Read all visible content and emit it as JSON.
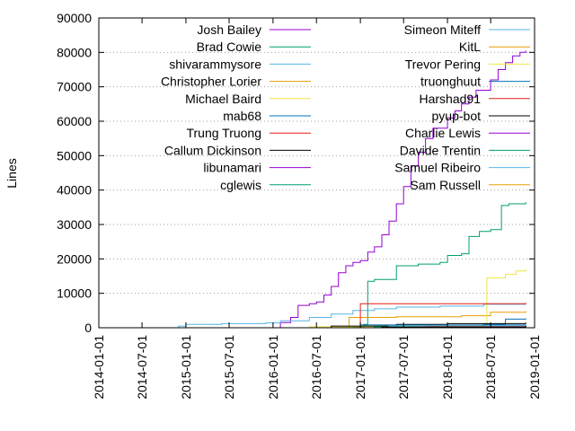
{
  "chart_data": {
    "type": "line",
    "title": "",
    "xlabel": "",
    "ylabel": "Lines",
    "xlim": [
      "2014-01-01",
      "2019-01-01"
    ],
    "ylim": [
      0,
      90000
    ],
    "x_ticks": [
      "2014-01-01",
      "2014-07-01",
      "2015-01-01",
      "2015-07-01",
      "2016-01-01",
      "2016-07-01",
      "2017-01-01",
      "2017-07-01",
      "2018-01-01",
      "2018-07-01",
      "2019-01-01"
    ],
    "y_ticks": [
      0,
      10000,
      20000,
      30000,
      40000,
      50000,
      60000,
      70000,
      80000,
      90000
    ],
    "grid": "horizontal dotted",
    "legend_position": "top",
    "series": [
      {
        "name": "Josh Bailey",
        "color": "#9400d3",
        "points": [
          [
            "2014-01-01",
            0
          ],
          [
            "2016-01-15",
            0
          ],
          [
            "2016-02-01",
            1500
          ],
          [
            "2016-03-15",
            3000
          ],
          [
            "2016-04-15",
            6500
          ],
          [
            "2016-06-01",
            7000
          ],
          [
            "2016-07-01",
            7500
          ],
          [
            "2016-08-01",
            9500
          ],
          [
            "2016-09-01",
            12000
          ],
          [
            "2016-10-01",
            16000
          ],
          [
            "2016-11-01",
            18000
          ],
          [
            "2016-12-01",
            19000
          ],
          [
            "2017-01-01",
            19500
          ],
          [
            "2017-02-01",
            22000
          ],
          [
            "2017-03-01",
            23500
          ],
          [
            "2017-04-01",
            27000
          ],
          [
            "2017-05-01",
            31000
          ],
          [
            "2017-06-01",
            36000
          ],
          [
            "2017-07-01",
            41000
          ],
          [
            "2017-08-01",
            47000
          ],
          [
            "2017-09-01",
            51000
          ],
          [
            "2017-10-01",
            55000
          ],
          [
            "2017-11-01",
            58000
          ],
          [
            "2018-01-01",
            61000
          ],
          [
            "2018-02-01",
            63000
          ],
          [
            "2018-03-01",
            65000
          ],
          [
            "2018-04-01",
            67000
          ],
          [
            "2018-05-01",
            69000
          ],
          [
            "2018-07-01",
            72000
          ],
          [
            "2018-08-01",
            75000
          ],
          [
            "2018-09-01",
            77000
          ],
          [
            "2018-10-01",
            79000
          ],
          [
            "2018-11-01",
            80000
          ],
          [
            "2018-11-25",
            80500
          ]
        ]
      },
      {
        "name": "Brad Cowie",
        "color": "#009e73",
        "points": [
          [
            "2014-01-01",
            0
          ],
          [
            "2016-12-01",
            200
          ],
          [
            "2017-01-15",
            1000
          ],
          [
            "2017-02-01",
            13500
          ],
          [
            "2017-03-01",
            14000
          ],
          [
            "2017-06-01",
            18000
          ],
          [
            "2017-09-01",
            18500
          ],
          [
            "2017-12-01",
            19000
          ],
          [
            "2018-01-01",
            21000
          ],
          [
            "2018-03-01",
            21500
          ],
          [
            "2018-04-01",
            26500
          ],
          [
            "2018-05-15",
            28000
          ],
          [
            "2018-07-01",
            28500
          ],
          [
            "2018-08-15",
            35500
          ],
          [
            "2018-09-15",
            36000
          ],
          [
            "2018-11-25",
            36500
          ]
        ]
      },
      {
        "name": "shivarammysore",
        "color": "#56b4e9",
        "points": [
          [
            "2014-01-01",
            0
          ],
          [
            "2014-12-01",
            500
          ],
          [
            "2015-01-01",
            1000
          ],
          [
            "2015-06-01",
            1200
          ],
          [
            "2015-12-01",
            1400
          ],
          [
            "2016-02-01",
            2000
          ],
          [
            "2016-06-01",
            3000
          ],
          [
            "2016-09-01",
            4000
          ],
          [
            "2016-12-01",
            5000
          ],
          [
            "2017-03-01",
            5500
          ],
          [
            "2017-06-01",
            6000
          ],
          [
            "2017-12-01",
            6300
          ],
          [
            "2018-06-01",
            6800
          ],
          [
            "2018-11-25",
            7000
          ]
        ]
      },
      {
        "name": "Christopher Lorier",
        "color": "#e69f00",
        "points": [
          [
            "2014-01-01",
            0
          ],
          [
            "2016-11-01",
            0
          ],
          [
            "2016-11-15",
            3000
          ],
          [
            "2017-06-01",
            3200
          ],
          [
            "2018-03-01",
            3500
          ],
          [
            "2018-07-01",
            4500
          ],
          [
            "2018-11-25",
            4800
          ]
        ]
      },
      {
        "name": "Michael Baird",
        "color": "#f0e442",
        "points": [
          [
            "2014-01-01",
            0
          ],
          [
            "2016-06-01",
            300
          ],
          [
            "2017-03-01",
            600
          ],
          [
            "2018-06-01",
            800
          ],
          [
            "2018-06-15",
            14500
          ],
          [
            "2018-09-01",
            15500
          ],
          [
            "2018-10-15",
            16500
          ],
          [
            "2018-11-25",
            17000
          ]
        ]
      },
      {
        "name": "mab68",
        "color": "#0072b2",
        "points": [
          [
            "2014-01-01",
            0
          ],
          [
            "2016-08-01",
            0
          ],
          [
            "2017-03-01",
            400
          ],
          [
            "2018-06-01",
            1000
          ],
          [
            "2018-09-01",
            2500
          ],
          [
            "2018-11-25",
            2700
          ]
        ]
      },
      {
        "name": "Trung Truong",
        "color": "#e51e10",
        "points": [
          [
            "2014-01-01",
            0
          ],
          [
            "2016-12-01",
            0
          ],
          [
            "2017-01-01",
            7000
          ],
          [
            "2018-11-25",
            7200
          ]
        ]
      },
      {
        "name": "Callum Dickinson",
        "color": "#000000",
        "points": [
          [
            "2014-01-01",
            0
          ],
          [
            "2016-06-01",
            0
          ],
          [
            "2016-09-01",
            500
          ],
          [
            "2017-06-01",
            1000
          ],
          [
            "2018-01-01",
            1200
          ],
          [
            "2018-11-25",
            1500
          ]
        ]
      },
      {
        "name": "libunamari",
        "color": "#9400d3",
        "points": [
          [
            "2014-01-01",
            0
          ],
          [
            "2018-11-25",
            0
          ]
        ]
      },
      {
        "name": "cglewis",
        "color": "#009e73",
        "points": [
          [
            "2014-01-01",
            0
          ],
          [
            "2016-10-01",
            0
          ],
          [
            "2017-03-01",
            300
          ],
          [
            "2018-11-25",
            600
          ]
        ]
      },
      {
        "name": "Simeon Miteff",
        "color": "#56b4e9",
        "points": [
          [
            "2014-01-01",
            0
          ],
          [
            "2017-04-01",
            0
          ],
          [
            "2017-05-01",
            500
          ],
          [
            "2018-11-25",
            500
          ]
        ]
      },
      {
        "name": "KitL",
        "color": "#e69f00",
        "points": [
          [
            "2014-01-01",
            0
          ],
          [
            "2017-06-01",
            0
          ],
          [
            "2017-07-01",
            200
          ],
          [
            "2018-11-25",
            300
          ]
        ]
      },
      {
        "name": "Trevor Pering",
        "color": "#f0e442",
        "points": [
          [
            "2014-01-01",
            0
          ],
          [
            "2018-11-25",
            0
          ]
        ]
      },
      {
        "name": "truonghuut",
        "color": "#0072b2",
        "points": [
          [
            "2014-01-01",
            0
          ],
          [
            "2016-10-01",
            0
          ],
          [
            "2017-01-01",
            800
          ],
          [
            "2018-11-25",
            900
          ]
        ]
      },
      {
        "name": "Harshad91",
        "color": "#e51e10",
        "points": [
          [
            "2014-01-01",
            0
          ],
          [
            "2017-09-01",
            0
          ],
          [
            "2017-10-01",
            300
          ],
          [
            "2018-11-25",
            350
          ]
        ]
      },
      {
        "name": "pyup-bot",
        "color": "#000000",
        "points": [
          [
            "2014-01-01",
            0
          ],
          [
            "2017-03-01",
            0
          ],
          [
            "2017-04-01",
            200
          ],
          [
            "2018-11-25",
            600
          ]
        ]
      },
      {
        "name": "Charlie Lewis",
        "color": "#9400d3",
        "points": [
          [
            "2014-01-01",
            0
          ],
          [
            "2018-11-25",
            0
          ]
        ]
      },
      {
        "name": "Davide Trentin",
        "color": "#009e73",
        "points": [
          [
            "2014-01-01",
            0
          ],
          [
            "2018-11-25",
            0
          ]
        ]
      },
      {
        "name": "Samuel Ribeiro",
        "color": "#56b4e9",
        "points": [
          [
            "2014-01-01",
            0
          ],
          [
            "2018-11-25",
            0
          ]
        ]
      },
      {
        "name": "Sam Russell",
        "color": "#e69f00",
        "points": [
          [
            "2014-01-01",
            0
          ],
          [
            "2018-11-25",
            0
          ]
        ]
      }
    ]
  }
}
